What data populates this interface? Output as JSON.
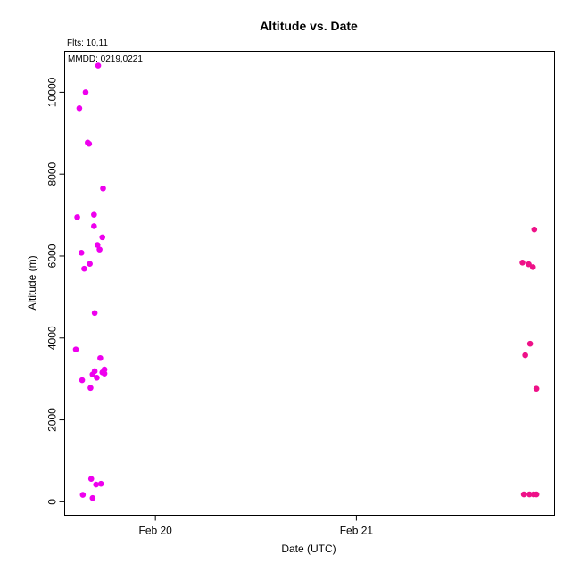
{
  "chart_data": {
    "type": "scatter",
    "title": "Altitude  vs. Date",
    "xlabel": "Date (UTC)",
    "ylabel": "Altitude (m)",
    "annotations": {
      "flights": "Flts: 10,11",
      "dates": "MMDD: 0219,0221"
    },
    "x_ticks": [
      {
        "label": "Feb 20",
        "value": "2000-02-20T00:00"
      },
      {
        "label": "Feb 21",
        "value": "2000-02-21T00:00"
      }
    ],
    "xlim": [
      "2000-02-19T13:10",
      "2000-02-21T23:40"
    ],
    "y_ticks": [
      {
        "label": "0",
        "value": 0
      },
      {
        "label": "2000",
        "value": 2000
      },
      {
        "label": "4000",
        "value": 4000
      },
      {
        "label": "6000",
        "value": 6000
      },
      {
        "label": "8000",
        "value": 8000
      },
      {
        "label": "10000",
        "value": 10000
      }
    ],
    "ylim": [
      -330,
      11000
    ],
    "grid": false,
    "series": [
      {
        "color": "#ee00ee",
        "points": [
          {
            "x": "2000-02-19T14:30",
            "y": 3720
          },
          {
            "x": "2000-02-19T14:40",
            "y": 6950
          },
          {
            "x": "2000-02-19T14:55",
            "y": 9610
          },
          {
            "x": "2000-02-19T15:10",
            "y": 6080
          },
          {
            "x": "2000-02-19T15:15",
            "y": 2970
          },
          {
            "x": "2000-02-19T15:20",
            "y": 170
          },
          {
            "x": "2000-02-19T15:30",
            "y": 5690
          },
          {
            "x": "2000-02-19T15:40",
            "y": 10000
          },
          {
            "x": "2000-02-19T15:55",
            "y": 8770
          },
          {
            "x": "2000-02-19T16:05",
            "y": 8740
          },
          {
            "x": "2000-02-19T16:10",
            "y": 5810
          },
          {
            "x": "2000-02-19T16:15",
            "y": 2780
          },
          {
            "x": "2000-02-19T16:20",
            "y": 560
          },
          {
            "x": "2000-02-19T16:30",
            "y": 3110
          },
          {
            "x": "2000-02-19T16:30",
            "y": 90
          },
          {
            "x": "2000-02-19T16:40",
            "y": 7010
          },
          {
            "x": "2000-02-19T16:40",
            "y": 6730
          },
          {
            "x": "2000-02-19T16:45",
            "y": 4610
          },
          {
            "x": "2000-02-19T16:45",
            "y": 3190
          },
          {
            "x": "2000-02-19T16:55",
            "y": 420
          },
          {
            "x": "2000-02-19T17:00",
            "y": 3030
          },
          {
            "x": "2000-02-19T17:05",
            "y": 6270
          },
          {
            "x": "2000-02-19T17:10",
            "y": 10650
          },
          {
            "x": "2000-02-19T17:20",
            "y": 6160
          },
          {
            "x": "2000-02-19T17:25",
            "y": 3510
          },
          {
            "x": "2000-02-19T17:30",
            "y": 440
          },
          {
            "x": "2000-02-19T17:40",
            "y": 6460
          },
          {
            "x": "2000-02-19T17:40",
            "y": 3160
          },
          {
            "x": "2000-02-19T17:45",
            "y": 7650
          },
          {
            "x": "2000-02-19T17:55",
            "y": 3230
          },
          {
            "x": "2000-02-19T17:55",
            "y": 3130
          }
        ]
      },
      {
        "color": "#ee1188",
        "points": [
          {
            "x": "2000-02-21T19:50",
            "y": 5840
          },
          {
            "x": "2000-02-21T20:10",
            "y": 3580
          },
          {
            "x": "2000-02-21T20:00",
            "y": 180
          },
          {
            "x": "2000-02-21T20:35",
            "y": 5800
          },
          {
            "x": "2000-02-21T20:45",
            "y": 3860
          },
          {
            "x": "2000-02-21T20:40",
            "y": 180
          },
          {
            "x": "2000-02-21T21:05",
            "y": 5730
          },
          {
            "x": "2000-02-21T21:10",
            "y": 180
          },
          {
            "x": "2000-02-21T21:15",
            "y": 6650
          },
          {
            "x": "2000-02-21T21:30",
            "y": 2760
          },
          {
            "x": "2000-02-21T21:30",
            "y": 180
          }
        ]
      }
    ]
  }
}
